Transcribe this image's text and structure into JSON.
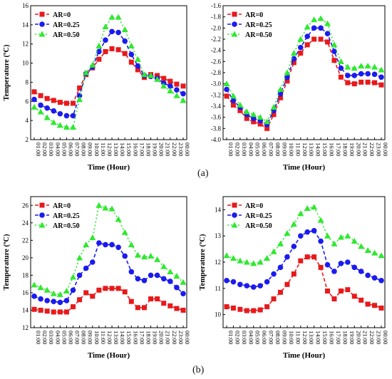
{
  "colors": {
    "AR=0": "#e8191b",
    "AR=0.25": "#1b1bf0",
    "AR=0.50": "#2fe82f"
  },
  "captions": [
    "(a)",
    "(b)"
  ],
  "chart_data": [
    {
      "type": "line",
      "xlabel": "Time (Hour)",
      "ylabel": "Temperature (ºC)",
      "ylim": [
        2,
        16
      ],
      "yticks": [
        2,
        4,
        6,
        8,
        10,
        12,
        14,
        16
      ],
      "legend": "top-left",
      "categories": [
        "01:00",
        "02:00",
        "03:00",
        "04:00",
        "05:00",
        "06:00",
        "07:00",
        "08:00",
        "09:00",
        "10:00",
        "11:00",
        "12:00",
        "13:00",
        "14:00",
        "15:00",
        "16:00",
        "17:00",
        "18:00",
        "19:00",
        "20:00",
        "21:00",
        "22:00",
        "23:00",
        "00:00"
      ],
      "series": [
        {
          "name": "AR=0",
          "values": [
            7.0,
            6.6,
            6.3,
            6.1,
            5.9,
            5.8,
            5.8,
            7.4,
            8.8,
            9.5,
            10.4,
            11.2,
            11.5,
            11.4,
            11.0,
            10.1,
            9.3,
            8.5,
            8.8,
            8.7,
            8.4,
            8.1,
            7.8,
            7.6
          ]
        },
        {
          "name": "AR=0.25",
          "values": [
            6.2,
            5.6,
            5.3,
            5.0,
            4.7,
            4.5,
            4.5,
            6.6,
            8.9,
            9.6,
            11.2,
            12.4,
            13.3,
            13.2,
            12.3,
            10.9,
            9.7,
            8.7,
            8.6,
            8.4,
            7.9,
            7.6,
            7.2,
            6.8
          ]
        },
        {
          "name": "AR=0.50",
          "values": [
            5.4,
            4.9,
            4.3,
            3.8,
            3.5,
            3.3,
            3.3,
            6.2,
            9.0,
            9.8,
            11.8,
            13.8,
            14.8,
            14.8,
            13.5,
            11.8,
            10.4,
            8.8,
            8.7,
            8.3,
            7.6,
            7.1,
            6.6,
            6.1
          ]
        }
      ]
    },
    {
      "type": "line",
      "xlabel": "Time (Hour)",
      "ylabel": "",
      "ylim": [
        -4.0,
        -1.6
      ],
      "yticks": [
        -4.0,
        -3.8,
        -3.6,
        -3.4,
        -3.2,
        -3.0,
        -2.8,
        -2.6,
        -2.4,
        -2.2,
        -2.0,
        -1.8,
        -1.6
      ],
      "legend": "top-left",
      "categories": [
        "01:00",
        "02:00",
        "03:00",
        "04:00",
        "05:00",
        "06:00",
        "07:00",
        "08:00",
        "09:00",
        "10:00",
        "11:00",
        "12:00",
        "13:00",
        "14:00",
        "15:00",
        "16:00",
        "17:00",
        "18:00",
        "19:00",
        "20:00",
        "21:00",
        "22:00",
        "23:00",
        "00:00"
      ],
      "series": [
        {
          "name": "AR=0",
          "values": [
            -3.22,
            -3.38,
            -3.48,
            -3.62,
            -3.68,
            -3.72,
            -3.8,
            -3.55,
            -3.25,
            -2.95,
            -2.62,
            -2.45,
            -2.3,
            -2.2,
            -2.2,
            -2.25,
            -2.58,
            -2.88,
            -2.98,
            -3.0,
            -2.97,
            -2.97,
            -2.98,
            -3.02
          ]
        },
        {
          "name": "AR=0.25",
          "values": [
            -3.1,
            -3.3,
            -3.42,
            -3.55,
            -3.62,
            -3.66,
            -3.73,
            -3.48,
            -3.18,
            -2.88,
            -2.55,
            -2.35,
            -2.15,
            -2.0,
            -2.0,
            -2.1,
            -2.42,
            -2.72,
            -2.85,
            -2.85,
            -2.82,
            -2.82,
            -2.83,
            -2.88
          ]
        },
        {
          "name": "AR=0.50",
          "values": [
            -3.0,
            -3.22,
            -3.38,
            -3.5,
            -3.55,
            -3.6,
            -3.68,
            -3.42,
            -3.1,
            -2.8,
            -2.45,
            -2.2,
            -1.98,
            -1.85,
            -1.83,
            -1.92,
            -2.3,
            -2.6,
            -2.7,
            -2.72,
            -2.68,
            -2.68,
            -2.7,
            -2.75
          ]
        }
      ]
    },
    {
      "type": "line",
      "xlabel": "Time (Hour)",
      "ylabel": "Temperature (ºC)",
      "ylim": [
        12,
        27
      ],
      "yticks": [
        12,
        14,
        16,
        18,
        20,
        22,
        24,
        26
      ],
      "legend": "top-left",
      "categories": [
        "01:00",
        "02:00",
        "03:00",
        "04:00",
        "05:00",
        "06:00",
        "07:00",
        "08:00",
        "09:00",
        "10:00",
        "11:00",
        "12:00",
        "13:00",
        "14:00",
        "15:00",
        "16:00",
        "17:00",
        "18:00",
        "19:00",
        "20:00",
        "21:00",
        "22:00",
        "23:00",
        "00:00"
      ],
      "series": [
        {
          "name": "AR=0",
          "values": [
            14.1,
            14.0,
            13.9,
            13.8,
            13.8,
            13.8,
            14.4,
            15.2,
            16.0,
            15.6,
            16.3,
            16.5,
            16.5,
            16.5,
            16.1,
            15.0,
            14.3,
            14.3,
            15.3,
            15.3,
            14.8,
            14.5,
            14.2,
            14.0
          ]
        },
        {
          "name": "AR=0.25",
          "values": [
            15.6,
            15.3,
            15.1,
            15.0,
            14.9,
            15.1,
            16.3,
            18.0,
            18.8,
            19.5,
            21.7,
            21.5,
            21.5,
            21.2,
            20.2,
            18.4,
            17.6,
            17.4,
            18.0,
            18.0,
            17.6,
            17.3,
            16.6,
            15.9
          ]
        },
        {
          "name": "AR=0.50",
          "values": [
            16.9,
            16.6,
            16.3,
            15.9,
            15.8,
            16.2,
            17.8,
            20.0,
            21.5,
            22.3,
            26.0,
            25.7,
            25.6,
            24.4,
            22.9,
            21.5,
            20.3,
            20.1,
            20.2,
            19.8,
            19.0,
            18.4,
            17.9,
            17.2
          ]
        }
      ]
    },
    {
      "type": "line",
      "xlabel": "Time (Hour)",
      "ylabel": "Temperature (ºC)",
      "ylim": [
        9.5,
        14.5
      ],
      "yticks": [
        10,
        11,
        12,
        13,
        14
      ],
      "legend": "top-left",
      "categories": [
        "01:00",
        "02:00",
        "03:00",
        "04:00",
        "05:00",
        "06:00",
        "07:00",
        "08:00",
        "09:00",
        "10:00",
        "11:00",
        "12:00",
        "13:00",
        "14:00",
        "15:00",
        "16:00",
        "17:00",
        "18:00",
        "19:00",
        "20:00",
        "21:00",
        "22:00",
        "23:00",
        "00:00"
      ],
      "series": [
        {
          "name": "AR=0",
          "values": [
            10.3,
            10.25,
            10.2,
            10.15,
            10.15,
            10.18,
            10.3,
            10.6,
            10.85,
            11.15,
            11.55,
            12.05,
            12.2,
            12.2,
            11.8,
            10.9,
            10.6,
            10.9,
            10.95,
            10.7,
            10.55,
            10.4,
            10.35,
            10.25
          ]
        },
        {
          "name": "AR=0.25",
          "values": [
            11.3,
            11.25,
            11.15,
            11.1,
            11.05,
            11.1,
            11.25,
            11.55,
            11.8,
            12.2,
            12.6,
            13.0,
            13.15,
            13.2,
            12.8,
            11.9,
            11.65,
            11.95,
            12.0,
            11.8,
            11.65,
            11.5,
            11.4,
            11.3
          ]
        },
        {
          "name": "AR=0.50",
          "values": [
            12.25,
            12.15,
            12.05,
            12.0,
            11.95,
            12.0,
            12.15,
            12.4,
            12.7,
            13.1,
            13.45,
            13.85,
            14.05,
            14.1,
            13.6,
            13.0,
            12.7,
            12.95,
            13.0,
            12.8,
            12.6,
            12.45,
            12.35,
            12.25
          ]
        }
      ]
    }
  ]
}
